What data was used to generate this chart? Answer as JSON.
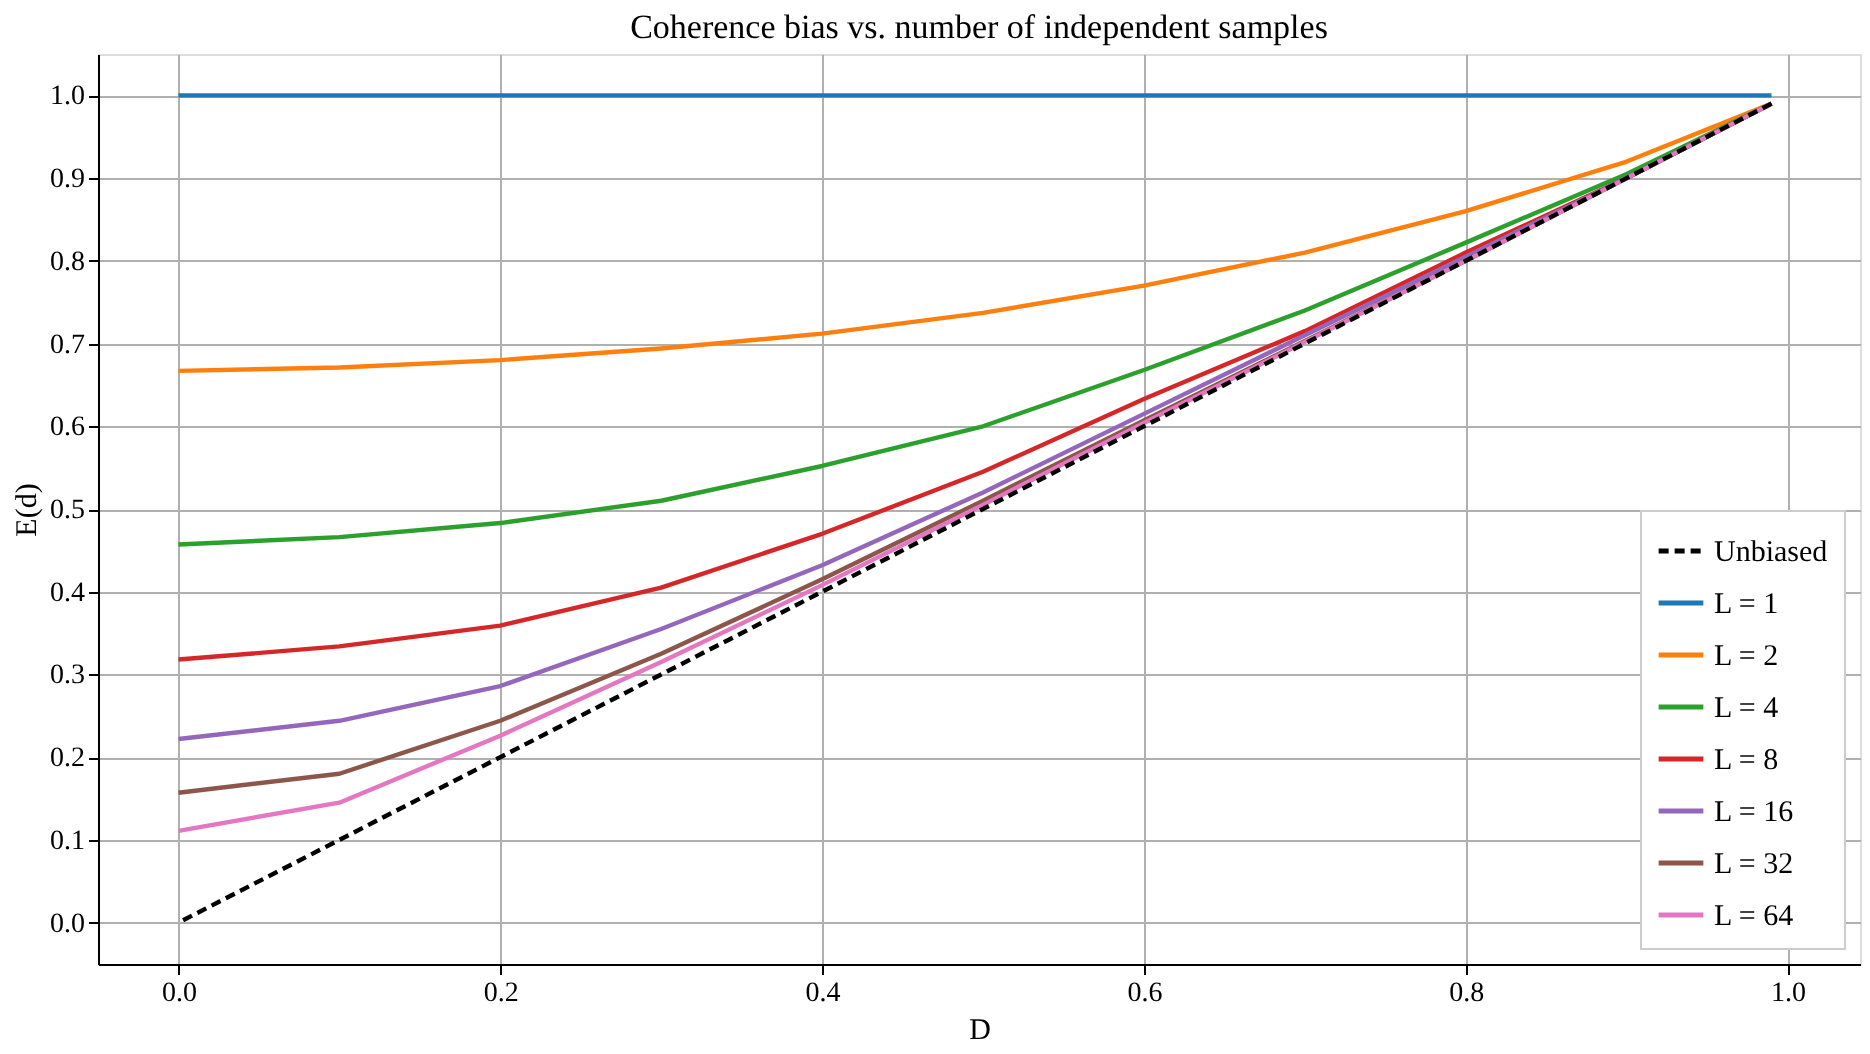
{
  "chart_data": {
    "type": "line",
    "title": "Coherence bias vs. number of independent samples",
    "xlabel": "D",
    "ylabel": "E(d)",
    "x": [
      0,
      0.1,
      0.2,
      0.3,
      0.4,
      0.5,
      0.6,
      0.7,
      0.8,
      0.9,
      0.99
    ],
    "xlim": [
      -0.05,
      1.045
    ],
    "ylim": [
      -0.05,
      1.05
    ],
    "xticks": [
      {
        "value": 0,
        "label": "0.0"
      },
      0.2,
      0.4,
      0.6,
      0.8,
      {
        "value": 1,
        "label": "1.0"
      }
    ],
    "yticks": [
      {
        "value": 0,
        "label": "0.0"
      },
      0.1,
      0.2,
      0.3,
      0.4,
      0.5,
      0.6,
      0.7,
      0.8,
      0.9,
      {
        "value": 1,
        "label": "1.0"
      }
    ],
    "grid": true,
    "legend": "bottom right",
    "marker": "none",
    "series": [
      {
        "name": "Unbiased",
        "color": "#000000",
        "line_style": "dashed",
        "values": [
          0,
          0.1,
          0.2,
          0.3,
          0.4,
          0.5,
          0.6,
          0.7,
          0.8,
          0.9,
          0.99
        ]
      },
      {
        "name": "L = 1",
        "color": "#1f77b4",
        "values": [
          1,
          1,
          1,
          1,
          1,
          1,
          1,
          1,
          1,
          1,
          1
        ]
      },
      {
        "name": "L = 2",
        "color": "#ff7f0e",
        "values": [
          0.667,
          0.671,
          0.68,
          0.694,
          0.712,
          0.737,
          0.77,
          0.81,
          0.86,
          0.92,
          0.99
        ]
      },
      {
        "name": "L = 4",
        "color": "#2ca02c",
        "values": [
          0.457,
          0.466,
          0.483,
          0.51,
          0.552,
          0.6,
          0.668,
          0.74,
          0.822,
          0.905,
          0.99
        ]
      },
      {
        "name": "L = 8",
        "color": "#d62728",
        "values": [
          0.318,
          0.334,
          0.359,
          0.405,
          0.47,
          0.545,
          0.633,
          0.715,
          0.81,
          0.9,
          0.99
        ]
      },
      {
        "name": "L = 16",
        "color": "#9467bd",
        "values": [
          0.222,
          0.244,
          0.286,
          0.355,
          0.432,
          0.52,
          0.615,
          0.71,
          0.805,
          0.9,
          0.99
        ]
      },
      {
        "name": "L = 32",
        "color": "#8c564b",
        "values": [
          0.157,
          0.18,
          0.244,
          0.325,
          0.415,
          0.51,
          0.607,
          0.703,
          0.8,
          0.9,
          0.99
        ]
      },
      {
        "name": "L = 64",
        "color": "#e377c2",
        "values": [
          0.111,
          0.145,
          0.226,
          0.315,
          0.408,
          0.505,
          0.604,
          0.702,
          0.8,
          0.9,
          0.99
        ]
      }
    ]
  }
}
